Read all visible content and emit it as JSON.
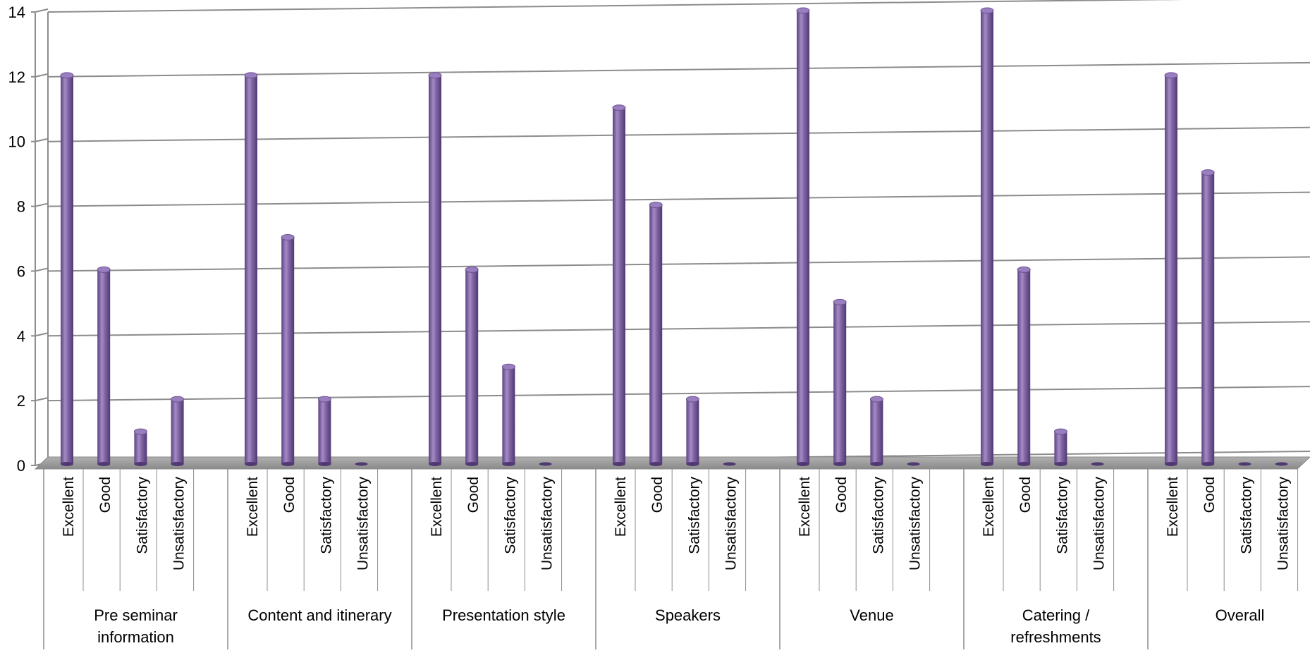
{
  "chart_data": {
    "type": "bar",
    "title": "",
    "xlabel": "",
    "ylabel": "",
    "ylim": [
      0,
      14
    ],
    "yticks": [
      0,
      2,
      4,
      6,
      8,
      10,
      12,
      14
    ],
    "grid": true,
    "bar_color": "#8064A2",
    "groups": [
      {
        "label": "Pre seminar information",
        "label_lines": [
          "Pre seminar",
          "information"
        ],
        "categories": [
          "Excellent",
          "Good",
          "Satisfactory",
          "Unsatisfactory"
        ],
        "values": [
          12,
          6,
          1,
          2
        ]
      },
      {
        "label": "Content and itinerary",
        "label_lines": [
          "Content and itinerary"
        ],
        "categories": [
          "Excellent",
          "Good",
          "Satisfactory",
          "Unsatisfactory"
        ],
        "values": [
          12,
          7,
          2,
          0
        ]
      },
      {
        "label": "Presentation style",
        "label_lines": [
          "Presentation style"
        ],
        "categories": [
          "Excellent",
          "Good",
          "Satisfactory",
          "Unsatisfactory"
        ],
        "values": [
          12,
          6,
          3,
          0
        ]
      },
      {
        "label": "Speakers",
        "label_lines": [
          "Speakers"
        ],
        "categories": [
          "Excellent",
          "Good",
          "Satisfactory",
          "Unsatisfactory"
        ],
        "values": [
          11,
          8,
          2,
          0
        ]
      },
      {
        "label": "Venue",
        "label_lines": [
          "Venue"
        ],
        "categories": [
          "Excellent",
          "Good",
          "Satisfactory",
          "Unsatisfactory"
        ],
        "values": [
          14,
          5,
          2,
          0
        ]
      },
      {
        "label": "Catering / refreshments",
        "label_lines": [
          "Catering /",
          "refreshments"
        ],
        "categories": [
          "Excellent",
          "Good",
          "Satisfactory",
          "Unsatisfactory"
        ],
        "values": [
          14,
          6,
          1,
          0
        ]
      },
      {
        "label": "Overall",
        "label_lines": [
          "Overall"
        ],
        "categories": [
          "Excellent",
          "Good",
          "Satisfactory",
          "Unsatisfactory"
        ],
        "values": [
          12,
          9,
          0,
          0
        ]
      }
    ]
  }
}
